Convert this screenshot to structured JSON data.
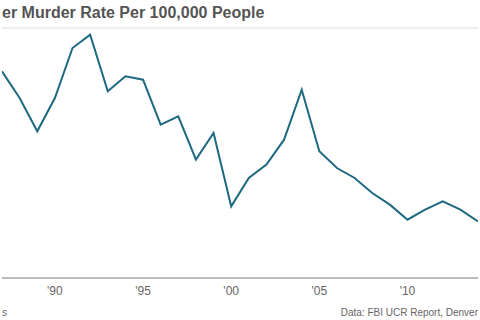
{
  "chart_data": {
    "type": "line",
    "title": "er Murder Rate Per 100,000 People",
    "source": "Data: FBI UCR Report, Denver",
    "credit": "s",
    "x": [
      1987,
      1988,
      1989,
      1990,
      1991,
      1992,
      1993,
      1994,
      1995,
      1996,
      1997,
      1998,
      1999,
      2000,
      2001,
      2002,
      2003,
      2004,
      2005,
      2006,
      2007,
      2008,
      2009,
      2010,
      2011,
      2012,
      2013,
      2014
    ],
    "values": [
      12.4,
      10.8,
      8.8,
      10.8,
      13.8,
      14.6,
      11.2,
      12.1,
      11.9,
      9.2,
      9.7,
      7.1,
      8.7,
      4.3,
      6.0,
      6.8,
      8.3,
      11.3,
      7.6,
      6.6,
      6.0,
      5.1,
      4.4,
      3.5,
      4.1,
      4.6,
      4.1,
      3.4
    ],
    "color": "#1d6a80",
    "xlim": [
      1987,
      2014
    ],
    "xticks": [
      {
        "value": 1990,
        "label": "'90"
      },
      {
        "value": 1995,
        "label": "'95"
      },
      {
        "value": 2000,
        "label": "'00"
      },
      {
        "value": 2005,
        "label": "'05"
      },
      {
        "value": 2010,
        "label": "'10"
      }
    ],
    "ylim": [
      0,
      15
    ],
    "yticks": [
      0,
      5,
      10,
      15
    ],
    "grid": true,
    "tick_labels": "x"
  }
}
